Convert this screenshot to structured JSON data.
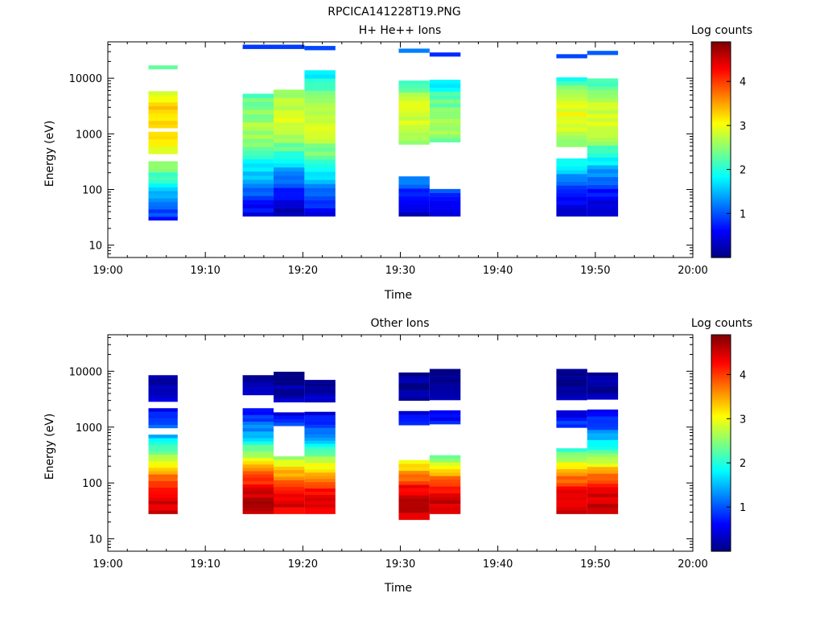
{
  "figure_title": "RPCICA141228T19.PNG",
  "colorscale": [
    "#00007f",
    "#0000ff",
    "#007fff",
    "#00ffff",
    "#7fff7f",
    "#ffff00",
    "#ff7f00",
    "#ff0000",
    "#7f0000"
  ],
  "chart_data": [
    {
      "type": "heatmap",
      "title": "H+ He++ Ions",
      "xlabel": "Time",
      "ylabel": "Energy (eV)",
      "yscale": "log",
      "xlim": [
        "19:00",
        "20:00"
      ],
      "ylim": [
        6,
        45000
      ],
      "xticks": [
        "19:00",
        "19:10",
        "19:20",
        "19:30",
        "19:40",
        "19:50",
        "20:00"
      ],
      "yticks": [
        {
          "value": 10,
          "label": "10"
        },
        {
          "value": 100,
          "label": "100"
        },
        {
          "value": 1000,
          "label": "1000"
        },
        {
          "value": 10000,
          "label": "10000"
        }
      ],
      "colorbar": {
        "label": "Log counts",
        "range": [
          0,
          4.9
        ],
        "ticks": [
          1,
          2,
          3,
          4
        ]
      },
      "blocks": [
        {
          "t_start": "19:04:10",
          "t_end": "19:07:10",
          "e_min": 28,
          "e_max": 17000,
          "peak": 3.3,
          "peak_energy": 1700,
          "width": 1.05,
          "gaps": [
            [
              330,
              430
            ],
            [
              1100,
              1200
            ],
            [
              6000,
              15000
            ]
          ]
        },
        {
          "t_start": "19:13:50",
          "t_end": "19:17:00",
          "e_min": 33,
          "e_max": 40000,
          "peak": 2.6,
          "peak_energy": 1500,
          "width": 0.9,
          "gaps": [
            [
              5500,
              36000
            ]
          ]
        },
        {
          "t_start": "19:17:00",
          "t_end": "19:20:10",
          "e_min": 33,
          "e_max": 40000,
          "peak": 2.9,
          "peak_energy": 2000,
          "width": 0.8,
          "gaps": [
            [
              5800,
              36000
            ]
          ]
        },
        {
          "t_start": "19:20:10",
          "t_end": "19:23:20",
          "e_min": 33,
          "e_max": 38000,
          "peak": 2.8,
          "peak_energy": 1500,
          "width": 0.9,
          "gaps": [
            [
              15000,
              34000
            ]
          ]
        },
        {
          "t_start": "19:29:50",
          "t_end": "19:33:00",
          "e_min": 33,
          "e_max": 34000,
          "peak": 2.9,
          "peak_energy": 2000,
          "width": 0.85,
          "gaps": [
            [
              170,
              650
            ],
            [
              9000,
              30000
            ]
          ]
        },
        {
          "t_start": "19:33:00",
          "t_end": "19:36:10",
          "e_min": 33,
          "e_max": 29000,
          "peak": 2.6,
          "peak_energy": 1500,
          "width": 0.85,
          "gaps": [
            [
              110,
              750
            ],
            [
              10000,
              26000
            ]
          ]
        },
        {
          "t_start": "19:46:00",
          "t_end": "19:49:10",
          "e_min": 33,
          "e_max": 27000,
          "peak": 3.0,
          "peak_energy": 1800,
          "width": 0.8,
          "gaps": [
            [
              380,
              550
            ],
            [
              11000,
              24000
            ]
          ]
        },
        {
          "t_start": "19:49:10",
          "t_end": "19:52:20",
          "e_min": 33,
          "e_max": 31000,
          "peak": 2.9,
          "peak_energy": 2000,
          "width": 0.8,
          "gaps": [
            [
              10000,
              28000
            ]
          ]
        }
      ]
    },
    {
      "type": "heatmap",
      "title": "Other Ions",
      "xlabel": "Time",
      "ylabel": "Energy (eV)",
      "yscale": "log",
      "xlim": [
        "19:00",
        "20:00"
      ],
      "ylim": [
        6,
        45000
      ],
      "xticks": [
        "19:00",
        "19:10",
        "19:20",
        "19:30",
        "19:40",
        "19:50",
        "20:00"
      ],
      "yticks": [
        {
          "value": 10,
          "label": "10"
        },
        {
          "value": 100,
          "label": "100"
        },
        {
          "value": 1000,
          "label": "1000"
        },
        {
          "value": 10000,
          "label": "10000"
        }
      ],
      "colorbar": {
        "label": "Log counts",
        "range": [
          0,
          4.9
        ],
        "ticks": [
          1,
          2,
          3,
          4
        ]
      },
      "blocks": [
        {
          "t_start": "19:04:10",
          "t_end": "19:07:10",
          "e_min": 28,
          "e_max": 8500,
          "peak": 4.5,
          "peak_energy": 40,
          "width": 0.85,
          "gaps": [
            [
              700,
              1000
            ],
            [
              2100,
              2800
            ]
          ]
        },
        {
          "t_start": "19:13:50",
          "t_end": "19:17:00",
          "e_min": 28,
          "e_max": 8500,
          "peak": 4.6,
          "peak_energy": 42,
          "width": 0.85,
          "gaps": [
            [
              2100,
              3600
            ]
          ]
        },
        {
          "t_start": "19:17:00",
          "t_end": "19:20:10",
          "e_min": 28,
          "e_max": 9800,
          "peak": 4.4,
          "peak_energy": 42,
          "width": 0.8,
          "gaps": [
            [
              300,
              1050
            ],
            [
              1900,
              2800
            ]
          ]
        },
        {
          "t_start": "19:20:10",
          "t_end": "19:23:20",
          "e_min": 28,
          "e_max": 7000,
          "peak": 4.4,
          "peak_energy": 42,
          "width": 0.8,
          "gaps": [
            [
              1800,
              2900
            ]
          ]
        },
        {
          "t_start": "19:29:50",
          "t_end": "19:33:00",
          "e_min": 22,
          "e_max": 9500,
          "peak": 4.6,
          "peak_energy": 40,
          "width": 0.8,
          "gaps": [
            [
              260,
              1050
            ],
            [
              1950,
              3000
            ]
          ]
        },
        {
          "t_start": "19:33:00",
          "t_end": "19:36:10",
          "e_min": 28,
          "e_max": 11000,
          "peak": 4.5,
          "peak_energy": 40,
          "width": 0.8,
          "gaps": [
            [
              320,
              1100
            ],
            [
              1950,
              3000
            ]
          ]
        },
        {
          "t_start": "19:46:00",
          "t_end": "19:49:10",
          "e_min": 28,
          "e_max": 11000,
          "peak": 4.5,
          "peak_energy": 40,
          "width": 0.8,
          "gaps": [
            [
              430,
              1050
            ],
            [
              1950,
              3000
            ]
          ]
        },
        {
          "t_start": "19:49:10",
          "t_end": "19:52:20",
          "e_min": 28,
          "e_max": 9500,
          "peak": 4.5,
          "peak_energy": 42,
          "width": 0.8,
          "gaps": [
            [
              2200,
              3000
            ]
          ]
        }
      ]
    }
  ]
}
